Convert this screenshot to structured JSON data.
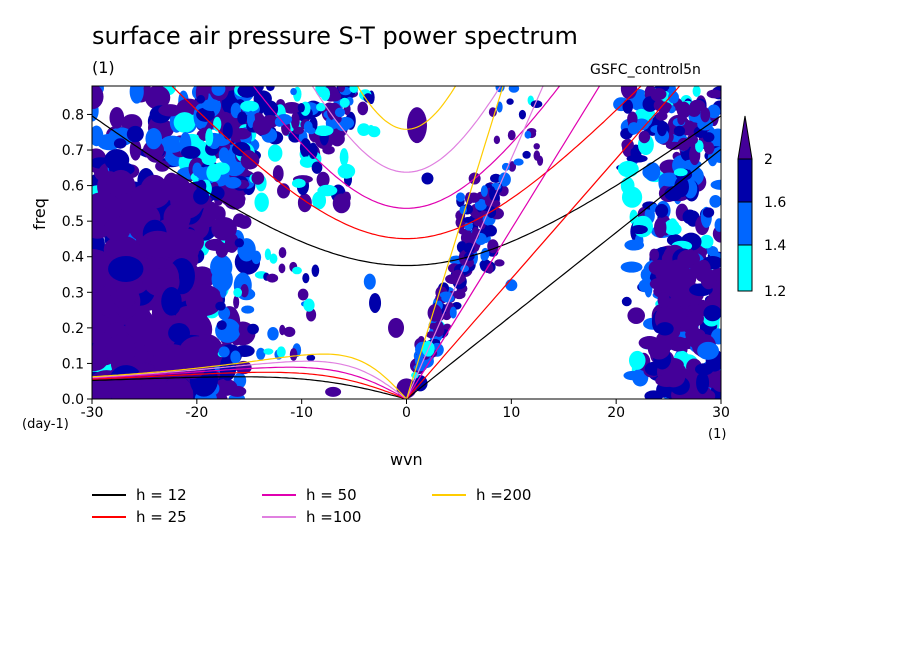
{
  "title": "surface air pressure S-T power spectrum",
  "units_top": "(1)",
  "experiment": "GSFC_control5n",
  "colors": {
    "level_1_2": "#00ffff",
    "level_1_4": "#0066ff",
    "level_1_6": "#0000aa",
    "level_2": "#440099",
    "h12": "#000000",
    "h25": "#ff0000",
    "h50": "#e000b0",
    "h100": "#e080e0",
    "h200": "#ffcc00"
  },
  "colorbar": {
    "labels": [
      "2",
      "1.6",
      "1.4",
      "1.2"
    ]
  },
  "legend": [
    {
      "label": "h = 12",
      "color_key": "h12"
    },
    {
      "label": "h = 25",
      "color_key": "h25"
    },
    {
      "label": "h = 50",
      "color_key": "h50"
    },
    {
      "label": "h =100",
      "color_key": "h100"
    },
    {
      "label": "h =200",
      "color_key": "h200"
    }
  ],
  "chart_data": {
    "type": "heatmap",
    "title": "surface air pressure S-T power spectrum",
    "xlabel": "wvn",
    "ylabel": "freq",
    "x_unit": "(1)",
    "y_unit": "(day-1)",
    "xlim": [
      -30,
      30
    ],
    "ylim": [
      0,
      0.88
    ],
    "xticks": [
      -30,
      -20,
      -10,
      0,
      10,
      20,
      30
    ],
    "yticks": [
      0.0,
      0.1,
      0.2,
      0.3,
      0.4,
      0.5,
      0.6,
      0.7,
      0.8
    ],
    "ytick_labels": [
      "0.0",
      "0.1",
      "0.2",
      "0.3",
      "0.4",
      "0.5",
      "0.6",
      "0.7",
      "0.8"
    ],
    "contour_levels": [
      1.2,
      1.4,
      1.6,
      2
    ],
    "series": [
      {
        "name": "h = 12"
      },
      {
        "name": "h = 25"
      },
      {
        "name": "h = 50"
      },
      {
        "name": "h =100"
      },
      {
        "name": "h =200"
      }
    ]
  }
}
